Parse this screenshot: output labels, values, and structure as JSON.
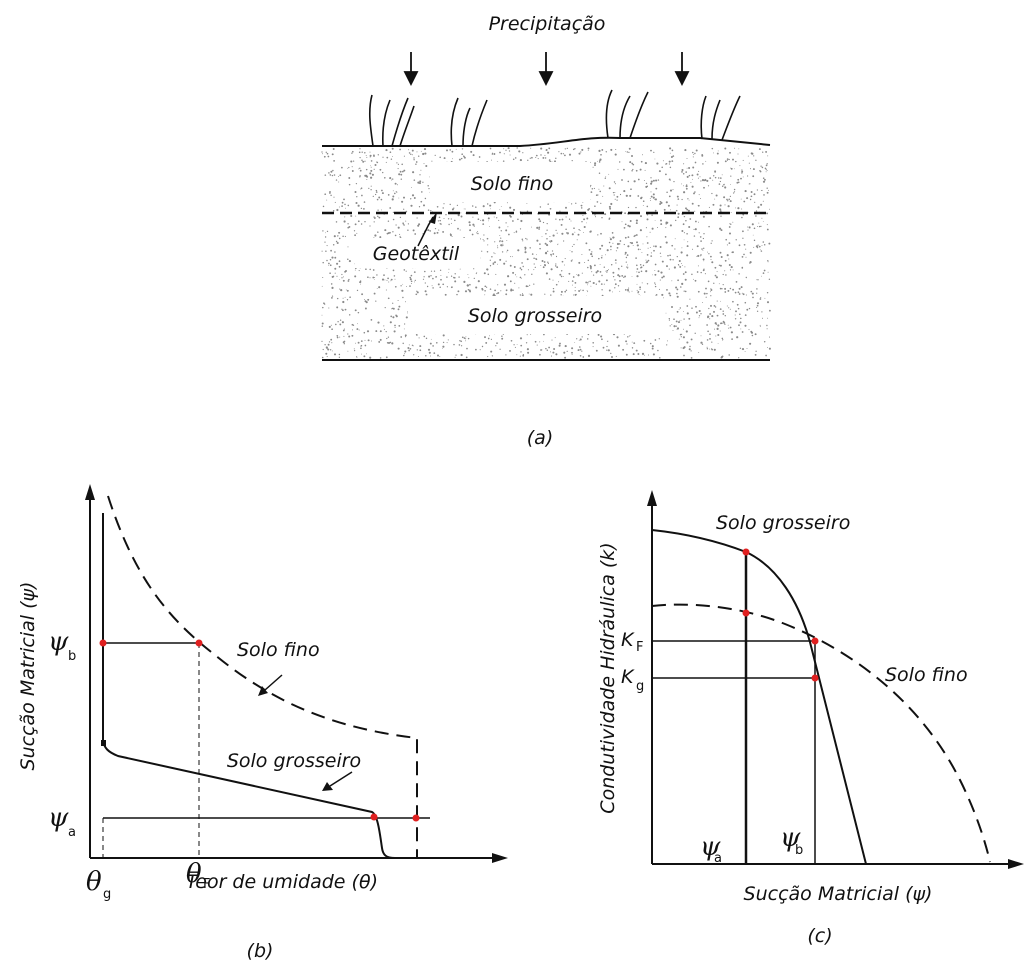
{
  "panel_a": {
    "top_label": "Precipitação",
    "fine_soil": "Solo fino",
    "geotextile": "Geotêxtil",
    "coarse_soil": "Solo grosseiro",
    "caption": "(a)"
  },
  "panel_b": {
    "y_axis_label": "Sucção Matricial (ψ)",
    "x_axis_label": "Teor de umidade (θ)",
    "psi_b_sym": "ψ",
    "psi_b_sub": "b",
    "psi_a_sym": "ψ",
    "psi_a_sub": "a",
    "theta_g_sym": "θ",
    "theta_g_sub": "g",
    "theta_f_sym": "θ",
    "theta_f_sub": "F",
    "fine_curve_label": "Solo fino",
    "coarse_curve_label": "Solo grosseiro",
    "caption": "(b)"
  },
  "panel_c": {
    "y_axis_label": "Condutividade Hidráulica (k)",
    "x_axis_label": "Sucção Matricial (ψ)",
    "coarse_curve_label": "Solo grosseiro",
    "fine_curve_label": "Solo fino",
    "kf_sym": "K",
    "kf_sub": "F",
    "kg_sym": "K",
    "kg_sub": "g",
    "psi_a_sym": "ψ",
    "psi_a_sub": "a",
    "psi_b_sym": "ψ",
    "psi_b_sub": "b",
    "caption": "(c)"
  },
  "colors": {
    "ink": "#111111",
    "marker": "#e02020",
    "soil_dots": "#8a8a8a"
  }
}
